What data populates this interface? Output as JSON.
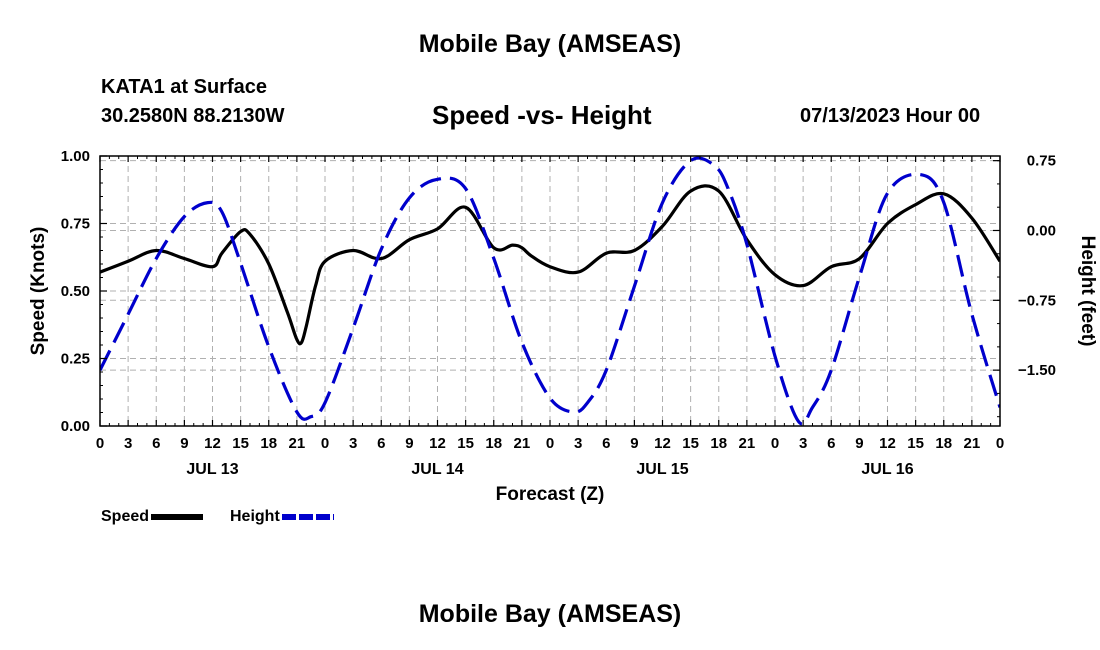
{
  "header": {
    "top_title": "Mobile Bay (AMSEAS)",
    "station": "KATA1 at Surface",
    "coords": "30.2580N  88.2130W",
    "chart_title": "Speed -vs- Height",
    "run_time": "07/13/2023 Hour 00"
  },
  "footer": {
    "bottom_title": "Mobile Bay (AMSEAS)"
  },
  "legend": {
    "speed_label": "Speed",
    "height_label": "Height"
  },
  "chart_data": {
    "type": "line",
    "title": "Speed -vs- Height",
    "xlabel": "Forecast (Z)",
    "ylabel": "Speed (Knots)",
    "y2label": "Height (feet)",
    "xlim": [
      0,
      96
    ],
    "ylim": [
      0,
      1.0
    ],
    "y2lim": [
      -2.1,
      0.8
    ],
    "x_ticks": [
      0,
      3,
      6,
      9,
      12,
      15,
      18,
      21,
      24,
      27,
      30,
      33,
      36,
      39,
      42,
      45,
      48,
      51,
      54,
      57,
      60,
      63,
      66,
      69,
      72,
      75,
      78,
      81,
      84,
      87,
      90,
      93,
      96
    ],
    "x_tick_labels": [
      "0",
      "3",
      "6",
      "9",
      "12",
      "15",
      "18",
      "21",
      "0",
      "3",
      "6",
      "9",
      "12",
      "15",
      "18",
      "21",
      "0",
      "3",
      "6",
      "9",
      "12",
      "15",
      "18",
      "21",
      "0",
      "3",
      "6",
      "9",
      "12",
      "15",
      "18",
      "21",
      "0"
    ],
    "date_labels": [
      {
        "x": 12,
        "label": "JUL 13"
      },
      {
        "x": 36,
        "label": "JUL 14"
      },
      {
        "x": 60,
        "label": "JUL 15"
      },
      {
        "x": 84,
        "label": "JUL 16"
      }
    ],
    "y_ticks": [
      0.0,
      0.25,
      0.5,
      0.75,
      1.0
    ],
    "y_tick_labels": [
      "0.00",
      "0.25",
      "0.50",
      "0.75",
      "1.00"
    ],
    "y2_ticks": [
      0.75,
      0.0,
      -0.75,
      -1.5
    ],
    "y2_tick_labels": [
      "0.75",
      "0.00",
      "−0.75",
      "−1.50"
    ],
    "grid": true,
    "legend_position": "bottom-left",
    "series": [
      {
        "name": "Speed",
        "axis": "left",
        "color": "#000000",
        "style": "solid",
        "x": [
          0,
          3,
          6,
          9,
          12,
          13,
          15,
          16,
          18,
          20,
          21,
          21.5,
          22,
          23,
          24,
          27,
          30,
          33,
          36,
          39,
          42,
          44,
          45,
          46,
          48,
          51,
          54,
          57,
          60,
          63,
          66,
          69,
          72,
          75,
          78,
          81,
          84,
          87,
          90,
          93,
          96
        ],
        "y": [
          0.57,
          0.61,
          0.65,
          0.62,
          0.59,
          0.64,
          0.72,
          0.71,
          0.6,
          0.42,
          0.32,
          0.31,
          0.37,
          0.52,
          0.61,
          0.65,
          0.62,
          0.69,
          0.73,
          0.81,
          0.66,
          0.67,
          0.66,
          0.63,
          0.59,
          0.57,
          0.64,
          0.65,
          0.74,
          0.87,
          0.87,
          0.69,
          0.56,
          0.52,
          0.59,
          0.62,
          0.75,
          0.82,
          0.86,
          0.77,
          0.61
        ]
      },
      {
        "name": "Height",
        "axis": "right",
        "color": "#0000cc",
        "style": "dashed",
        "x": [
          0,
          3,
          6,
          9,
          11.5,
          13,
          15,
          18,
          21,
          22.5,
          24,
          27,
          30,
          33,
          36,
          39,
          42,
          45,
          48,
          50.5,
          52,
          54,
          57,
          60,
          63,
          65.5,
          67,
          69,
          72,
          74.5,
          76,
          78,
          81,
          84,
          87.5,
          90,
          93,
          96
        ],
        "y": [
          -1.5,
          -0.9,
          -0.3,
          0.15,
          0.3,
          0.2,
          -0.35,
          -1.25,
          -1.95,
          -2.0,
          -1.85,
          -1.05,
          -0.2,
          0.35,
          0.55,
          0.45,
          -0.3,
          -1.2,
          -1.8,
          -1.95,
          -1.85,
          -1.5,
          -0.6,
          0.3,
          0.75,
          0.7,
          0.45,
          -0.15,
          -1.35,
          -2.05,
          -1.9,
          -1.5,
          -0.5,
          0.4,
          0.6,
          0.3,
          -0.9,
          -1.9
        ]
      }
    ]
  }
}
